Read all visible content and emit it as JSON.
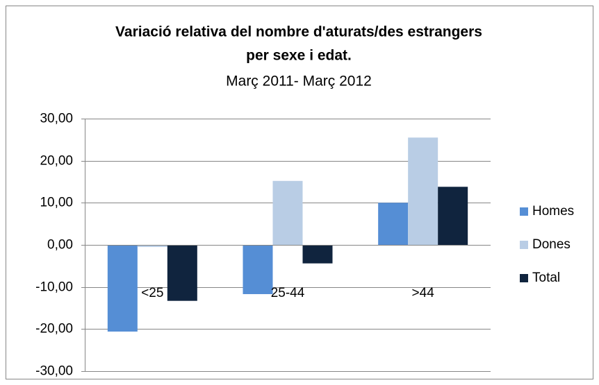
{
  "chart_data": {
    "type": "bar",
    "title": [
      "Variació relativa del nombre d'aturats/des estrangers",
      "per sexe i edat."
    ],
    "subtitle": "Març 2011- Març 2012",
    "categories": [
      "<25",
      "25-44",
      ">44"
    ],
    "series": [
      {
        "name": "Homes",
        "color": "#558ed5",
        "values": [
          -20.6,
          -11.7,
          10.0
        ]
      },
      {
        "name": "Dones",
        "color": "#b9cde5",
        "values": [
          -0.5,
          15.2,
          25.5
        ]
      },
      {
        "name": "Total",
        "color": "#10243e",
        "values": [
          -13.3,
          -4.4,
          13.8
        ]
      }
    ],
    "ylim": [
      -30,
      30
    ],
    "yticks": [
      {
        "value": -30,
        "label": "-30,00"
      },
      {
        "value": -20,
        "label": "-20,00"
      },
      {
        "value": -10,
        "label": "-10,00"
      },
      {
        "value": 0,
        "label": "0,00"
      },
      {
        "value": 10,
        "label": "10,00"
      },
      {
        "value": 20,
        "label": "20,00"
      },
      {
        "value": 30,
        "label": "30,00"
      }
    ],
    "grid": true,
    "legend": "right"
  }
}
